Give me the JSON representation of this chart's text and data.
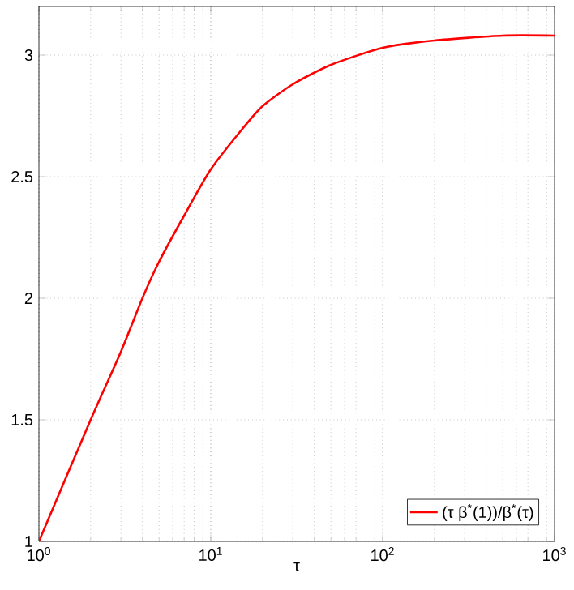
{
  "chart_data": {
    "type": "line",
    "xlabel": "τ",
    "log": "x",
    "grid": true,
    "legend": "bottom right",
    "xlim": [
      1,
      1000
    ],
    "ylim": [
      1,
      3.2
    ],
    "xticks": [
      {
        "value": 1,
        "label": "10$^{0}$"
      },
      {
        "value": 10,
        "label": "10$^{1}$"
      },
      {
        "value": 100,
        "label": "10$^{2}$"
      },
      {
        "value": 1000,
        "label": "10$^{3}$"
      }
    ],
    "yticks": [
      1,
      1.5,
      2,
      2.5,
      3
    ],
    "x": [
      1,
      2,
      3,
      4,
      5,
      7,
      10,
      15,
      20,
      30,
      50,
      100,
      200,
      500,
      1000
    ],
    "series": [
      {
        "name": "(τ β$^{*}$(1))/β$^{*}$(τ)",
        "color": "#ff0000",
        "values": [
          1,
          1.5,
          1.78,
          2.0,
          2.15,
          2.34,
          2.53,
          2.69,
          2.79,
          2.88,
          2.96,
          3.03,
          3.06,
          3.08,
          3.08
        ]
      }
    ]
  }
}
